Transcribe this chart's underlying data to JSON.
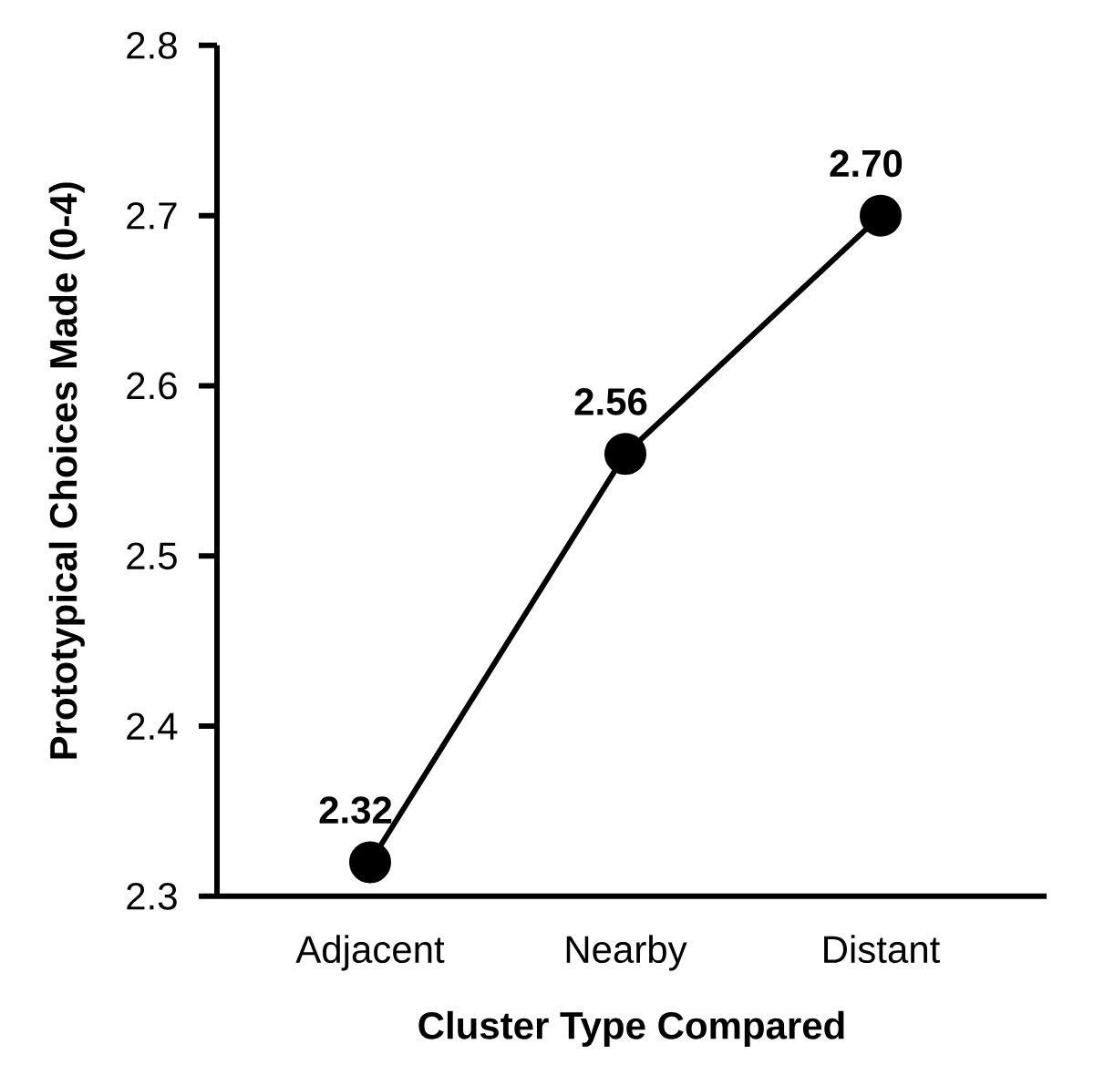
{
  "chart_data": {
    "type": "line",
    "xlabel": "Cluster Type Compared",
    "ylabel": "Prototypical Choices Made (0-4)",
    "categories": [
      "Adjacent",
      "Nearby",
      "Distant"
    ],
    "series": [
      {
        "color": "#000000",
        "values": [
          2.32,
          2.56,
          2.7
        ],
        "value_labels": [
          "2.32",
          "2.56",
          "2.70"
        ]
      }
    ],
    "ylim": [
      2.3,
      2.8
    ],
    "yticks": [
      2.3,
      2.4,
      2.5,
      2.6,
      2.7,
      2.8
    ],
    "marker": "circle",
    "line_style": "solid"
  }
}
